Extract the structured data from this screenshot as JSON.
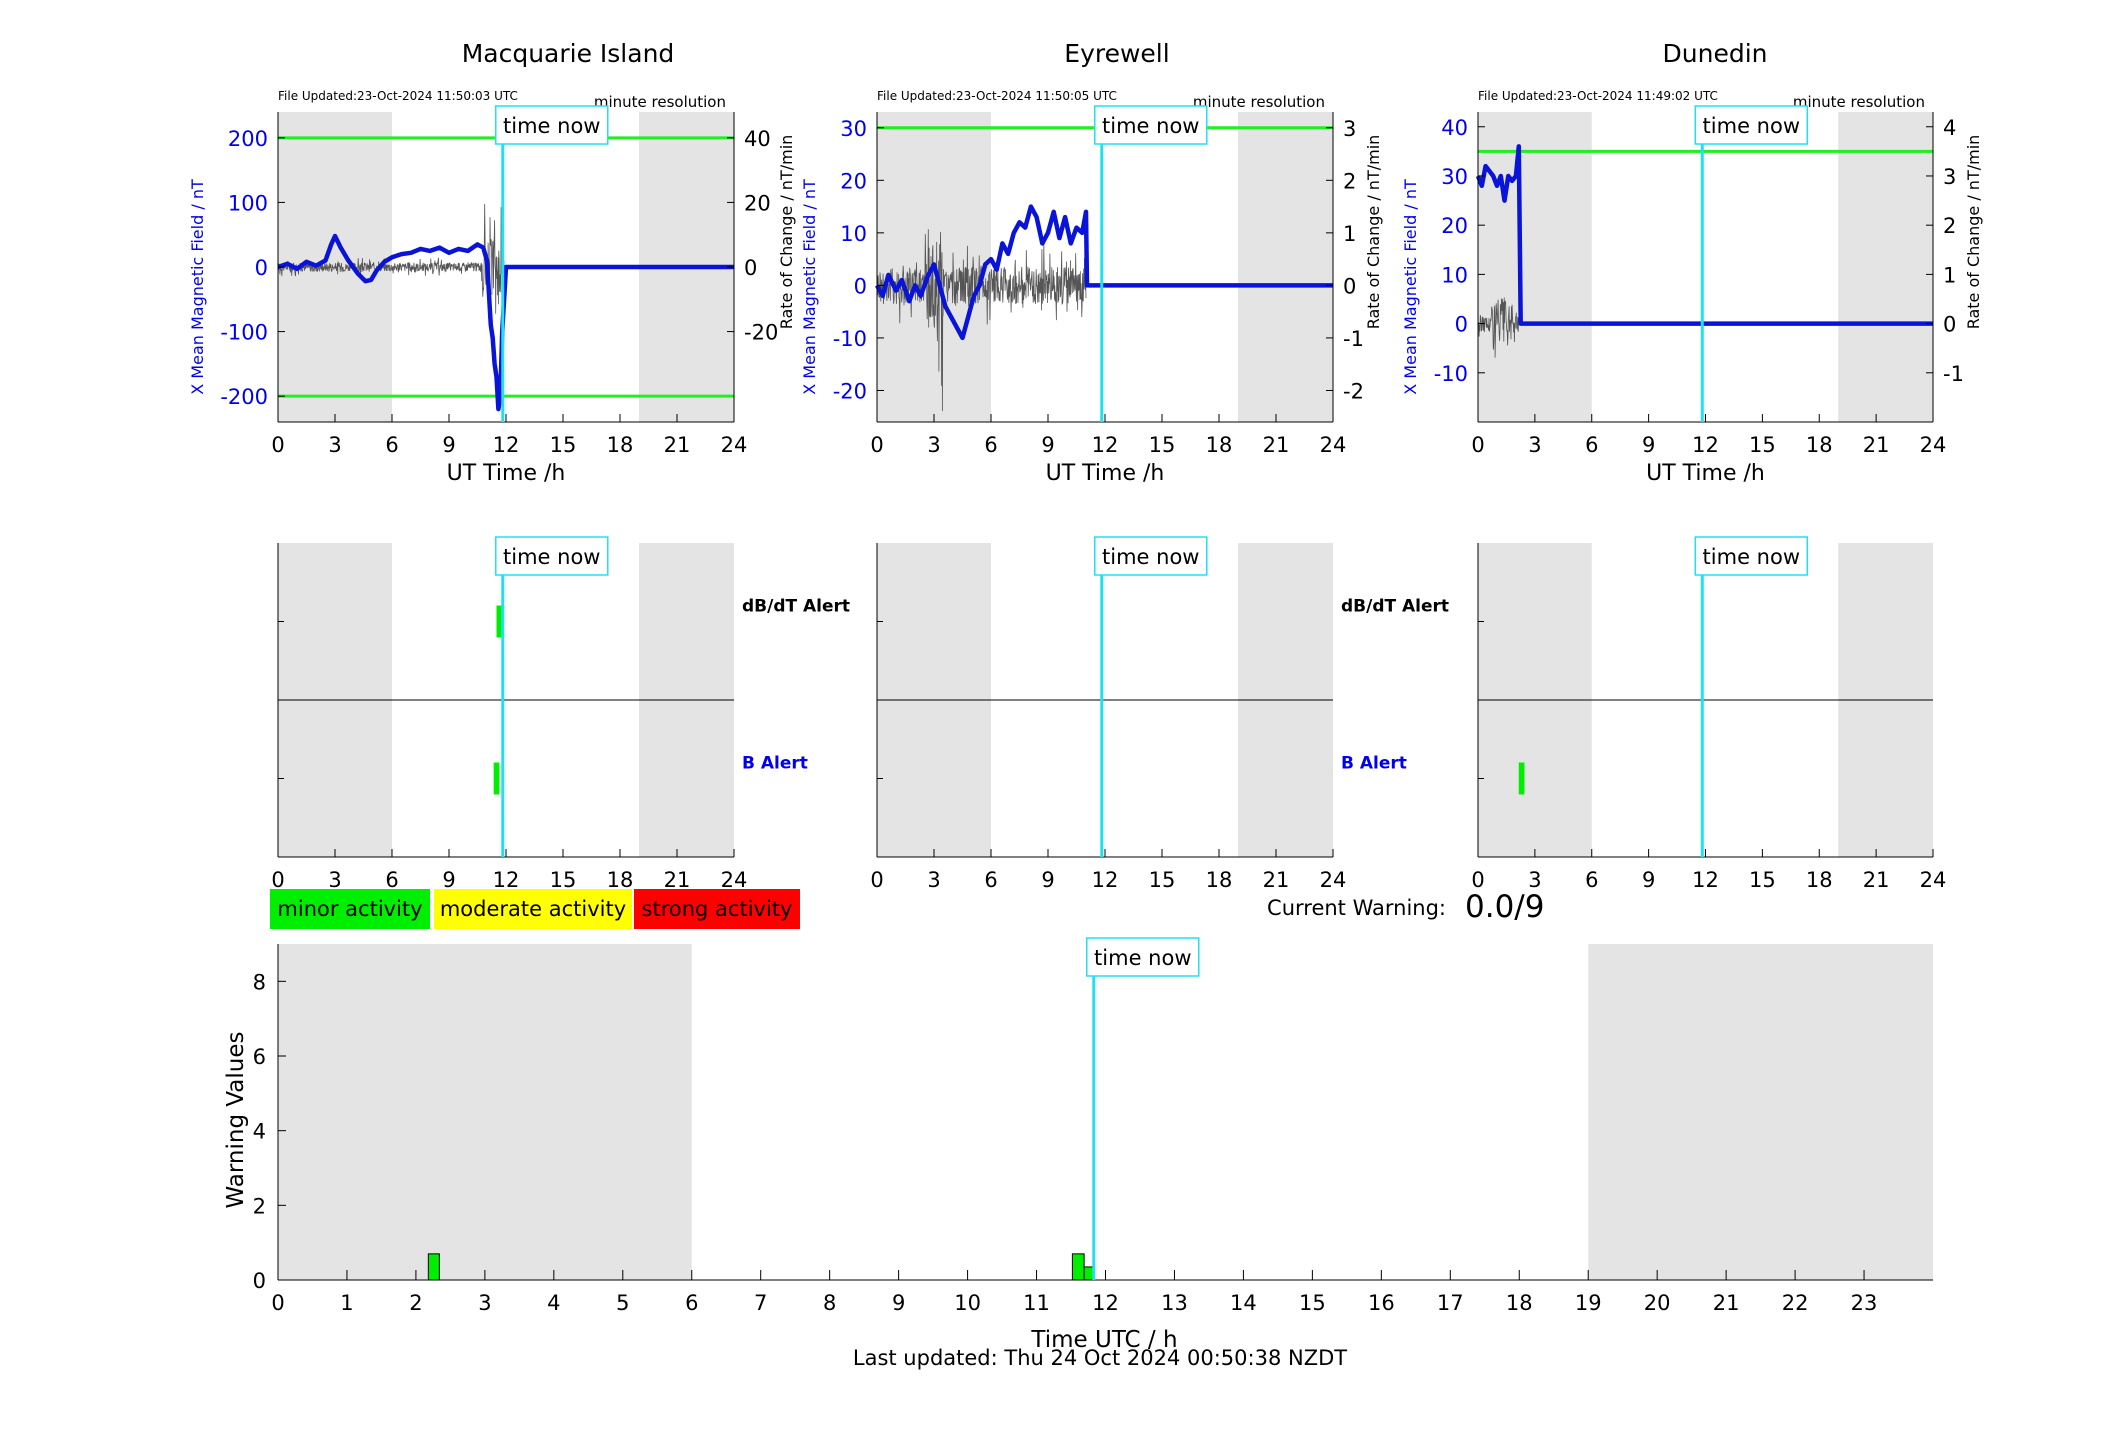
{
  "colors": {
    "b_line": "#0a14d8",
    "threshold": "#22ee22",
    "time_now": "#22e0f0",
    "night_shade": "#e4e4e4",
    "dbdt_trace": "#555555",
    "minor": "#00ee00",
    "moderate": "#ffff00",
    "strong": "#ff0000",
    "b_axis": "#0000ee"
  },
  "common": {
    "time_now_label": "time now",
    "resolution_label": "minute resolution",
    "x_axis_label": "UT Time /h",
    "y_left_label": "X Mean Magnetic Field / nT",
    "y_right_label": "Rate of Change / nT/min",
    "dbdt_alert_label": "dB/dT Alert",
    "b_alert_label": "B Alert",
    "x_ticks": [
      "0",
      "3",
      "6",
      "9",
      "12",
      "15",
      "18",
      "21",
      "24"
    ],
    "current_warning_label": "Current Warning:",
    "current_warning_value": "0.0/9"
  },
  "legend": {
    "minor": "minor activity",
    "moderate": "moderate activity",
    "strong": "strong activity"
  },
  "footer": {
    "last_updated": "Last updated: Thu 24 Oct 2024 00:50:38 NZDT"
  },
  "chart_data": [
    {
      "type": "line",
      "station": "Macquarie Island",
      "title": "Macquarie Island",
      "file_updated": "File Updated:23-Oct-2024 11:50:03 UTC",
      "xlim": [
        0,
        24
      ],
      "ylim_left": [
        -240,
        240
      ],
      "yticks_left": [
        -200,
        -100,
        0,
        100,
        200
      ],
      "ylim_right": [
        -48,
        48
      ],
      "yticks_right": [
        -20,
        0,
        20,
        40
      ],
      "threshold_lines": [
        200,
        -200
      ],
      "time_now": 11.83,
      "night_shading": [
        [
          0,
          6
        ],
        [
          19,
          24
        ]
      ],
      "series": [
        {
          "name": "X Mean Magnetic Field",
          "axis": "left",
          "x": [
            0,
            0.5,
            1,
            1.5,
            2,
            2.5,
            2.8,
            3.0,
            3.3,
            3.7,
            4.2,
            4.6,
            4.9,
            5.2,
            5.6,
            6.0,
            6.5,
            7.0,
            7.5,
            8.0,
            8.5,
            9.0,
            9.5,
            10.0,
            10.5,
            10.8,
            11.0,
            11.1,
            11.2,
            11.3,
            11.4,
            11.5,
            11.6,
            11.7,
            11.8,
            12,
            24
          ],
          "y": [
            0,
            5,
            -3,
            8,
            2,
            10,
            35,
            48,
            30,
            10,
            -10,
            -22,
            -20,
            -5,
            8,
            15,
            20,
            22,
            28,
            25,
            30,
            22,
            28,
            25,
            35,
            30,
            10,
            -40,
            -90,
            -110,
            -150,
            -170,
            -220,
            -200,
            -100,
            0,
            0
          ]
        },
        {
          "name": "Rate of Change",
          "axis": "right",
          "kind": "noise",
          "x_range": [
            0,
            11.9
          ],
          "amplitude": 3,
          "spike_region": [
            10.7,
            11.9
          ],
          "spike_amplitude": 20
        }
      ],
      "dbdt_alert_bars": [
        {
          "x": 11.5,
          "width": 0.2
        }
      ],
      "b_alert_bars": [
        {
          "x": 11.35,
          "width": 0.3
        }
      ]
    },
    {
      "type": "line",
      "station": "Eyrewell",
      "title": "Eyrewell",
      "file_updated": "File Updated:23-Oct-2024 11:50:05 UTC",
      "xlim": [
        0,
        24
      ],
      "ylim_left": [
        -26,
        33
      ],
      "yticks_left": [
        -20,
        -10,
        0,
        10,
        20,
        30
      ],
      "ylim_right": [
        -2.6,
        3.3
      ],
      "yticks_right": [
        -2,
        -1,
        0,
        1,
        2,
        3
      ],
      "threshold_lines": [
        30
      ],
      "time_now": 11.83,
      "night_shading": [
        [
          0,
          6
        ],
        [
          19,
          24
        ]
      ],
      "series": [
        {
          "name": "X Mean Magnetic Field",
          "axis": "left",
          "x": [
            0,
            0.3,
            0.6,
            1.0,
            1.3,
            1.7,
            2.0,
            2.3,
            2.7,
            3.0,
            3.3,
            3.6,
            3.9,
            4.2,
            4.5,
            4.8,
            5.1,
            5.4,
            5.7,
            6.0,
            6.3,
            6.6,
            6.9,
            7.2,
            7.5,
            7.8,
            8.1,
            8.4,
            8.7,
            9.0,
            9.3,
            9.6,
            9.9,
            10.2,
            10.5,
            10.8,
            11.0,
            11.05,
            12,
            24
          ],
          "y": [
            0,
            -2,
            2,
            -1,
            1,
            -3,
            0,
            -2,
            2,
            4,
            0,
            -4,
            -6,
            -8,
            -10,
            -6,
            -2,
            0,
            4,
            5,
            3,
            8,
            6,
            10,
            12,
            11,
            15,
            13,
            8,
            10,
            14,
            9,
            13,
            8,
            11,
            10,
            14,
            0,
            0,
            0
          ]
        },
        {
          "name": "Rate of Change",
          "axis": "right",
          "kind": "noise",
          "x_range": [
            0,
            11.0
          ],
          "amplitude": 0.8,
          "spike_region": [
            2.5,
            3.5
          ],
          "spike_amplitude": 2.4
        }
      ],
      "dbdt_alert_bars": [],
      "b_alert_bars": []
    },
    {
      "type": "line",
      "station": "Dunedin",
      "title": "Dunedin",
      "file_updated": "File Updated:23-Oct-2024 11:49:02 UTC",
      "xlim": [
        0,
        24
      ],
      "ylim_left": [
        -20,
        43
      ],
      "yticks_left": [
        -10,
        0,
        10,
        20,
        30,
        40
      ],
      "ylim_right": [
        -2,
        4.3
      ],
      "yticks_right": [
        -1,
        0,
        1,
        2,
        3,
        4
      ],
      "threshold_lines": [
        35
      ],
      "time_now": 11.83,
      "night_shading": [
        [
          0,
          6
        ],
        [
          19,
          24
        ]
      ],
      "series": [
        {
          "name": "X Mean Magnetic Field",
          "axis": "left",
          "x": [
            0,
            0.2,
            0.4,
            0.6,
            0.8,
            1.0,
            1.2,
            1.4,
            1.6,
            1.8,
            2.0,
            2.15,
            2.25,
            2.3,
            12,
            24
          ],
          "y": [
            30,
            28,
            32,
            31,
            30,
            28,
            30,
            25,
            30,
            29,
            30,
            36,
            0,
            0,
            0,
            0
          ]
        },
        {
          "name": "Rate of Change",
          "axis": "right",
          "kind": "noise",
          "x_range": [
            0,
            2.2
          ],
          "amplitude": 0.4,
          "spike_region": [
            0.7,
            1.6
          ],
          "spike_amplitude": 1.2
        }
      ],
      "dbdt_alert_bars": [],
      "b_alert_bars": [
        {
          "x": 2.15,
          "width": 0.3
        }
      ]
    },
    {
      "type": "bar",
      "title": "",
      "xlabel": "Time UTC / h",
      "ylabel": "Warning Values",
      "xlim": [
        0,
        24
      ],
      "xticks": [
        0,
        1,
        2,
        3,
        4,
        5,
        6,
        7,
        8,
        9,
        10,
        11,
        12,
        13,
        14,
        15,
        16,
        17,
        18,
        19,
        20,
        21,
        22,
        23
      ],
      "ylim": [
        0,
        9
      ],
      "yticks": [
        0,
        2,
        4,
        6,
        8
      ],
      "time_now": 11.83,
      "night_shading": [
        [
          0,
          6
        ],
        [
          19,
          24
        ]
      ],
      "bars": [
        {
          "x": 2.18,
          "width": 0.16,
          "value": 0.7
        },
        {
          "x": 11.52,
          "width": 0.17,
          "value": 0.7
        },
        {
          "x": 11.69,
          "width": 0.14,
          "value": 0.35
        }
      ]
    }
  ]
}
